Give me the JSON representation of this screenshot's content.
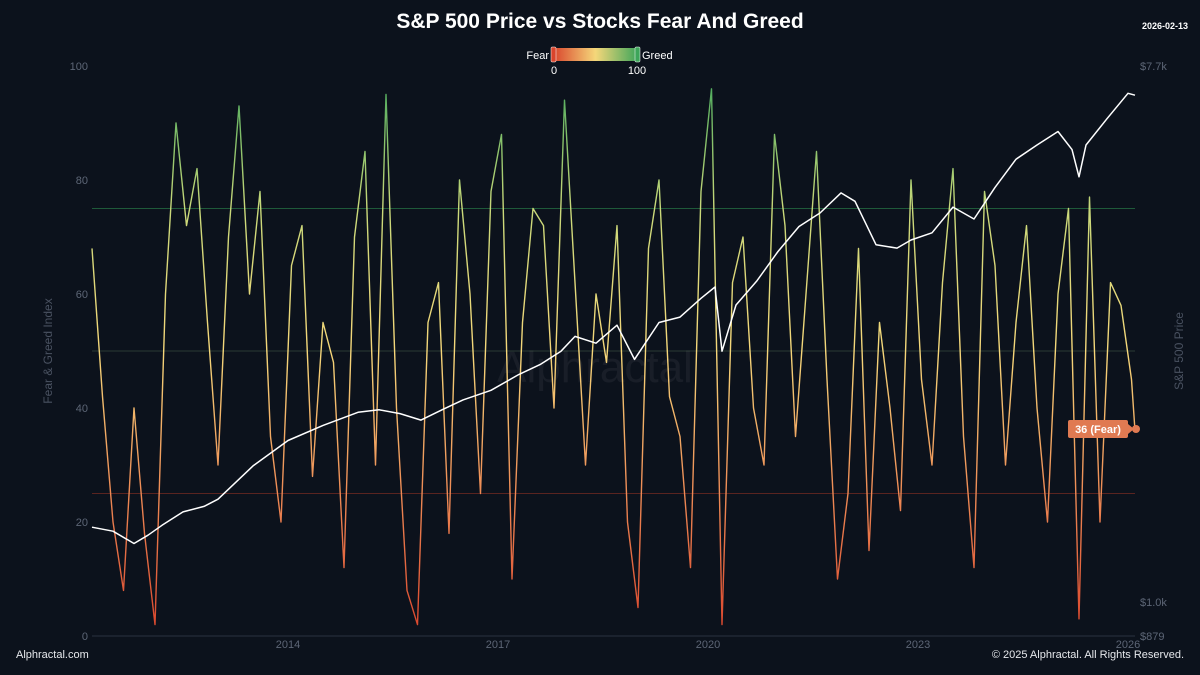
{
  "header": {
    "title": "S&P 500 Price vs Stocks Fear And Greed",
    "date": "2026-02-13"
  },
  "footer": {
    "left": "Alphractal.com",
    "right": "© 2025 Alphractal. All Rights Reserved."
  },
  "watermark": "Alphractal",
  "colors": {
    "background": "#0c121c",
    "fear": "#d9442c",
    "neutral": "#f5d77a",
    "greed": "#3da55a",
    "price_line": "#ffffff",
    "badge": "#e07a52"
  },
  "chart_data": {
    "type": "line",
    "title": "S&P 500 Price vs Stocks Fear And Greed",
    "legend": {
      "left_label": "Fear",
      "right_label": "Greed",
      "min_label": "0",
      "max_label": "100",
      "position": "top-center"
    },
    "x_axis": {
      "range": [
        2011.2,
        2026.1
      ],
      "ticks": [
        2014,
        2017,
        2020,
        2023,
        2026
      ],
      "tick_labels": [
        "2014",
        "2017",
        "2020",
        "2023",
        "2026"
      ]
    },
    "y_left": {
      "label": "Fear & Greed Index",
      "range": [
        0,
        100
      ],
      "ticks": [
        0,
        20,
        40,
        60,
        80,
        100
      ],
      "tick_labels": [
        "0",
        "20",
        "40",
        "60",
        "80",
        "100"
      ]
    },
    "y_right": {
      "label": "S&P 500 Price",
      "scale": "log",
      "range": [
        879,
        7700
      ],
      "ticks": [
        879,
        1000,
        7700
      ],
      "tick_labels": [
        "$879",
        "$1.0k",
        "$7.7k"
      ]
    },
    "reference_lines": [
      {
        "value": 75,
        "color": "#1f5a3a"
      },
      {
        "value": 50,
        "color": "#2a3a33"
      },
      {
        "value": 25,
        "color": "#5a2420"
      }
    ],
    "series": [
      {
        "name": "Fear & Greed Index",
        "axis": "left",
        "style": "gradient",
        "x": [
          2011.2,
          2011.35,
          2011.5,
          2011.65,
          2011.8,
          2011.95,
          2012.1,
          2012.25,
          2012.4,
          2012.55,
          2012.7,
          2012.85,
          2013.0,
          2013.15,
          2013.3,
          2013.45,
          2013.6,
          2013.75,
          2013.9,
          2014.05,
          2014.2,
          2014.35,
          2014.5,
          2014.65,
          2014.8,
          2014.95,
          2015.1,
          2015.25,
          2015.4,
          2015.55,
          2015.7,
          2015.85,
          2016.0,
          2016.15,
          2016.3,
          2016.45,
          2016.6,
          2016.75,
          2016.9,
          2017.05,
          2017.2,
          2017.35,
          2017.5,
          2017.65,
          2017.8,
          2017.95,
          2018.1,
          2018.25,
          2018.4,
          2018.55,
          2018.7,
          2018.85,
          2019.0,
          2019.15,
          2019.3,
          2019.45,
          2019.6,
          2019.75,
          2019.9,
          2020.05,
          2020.2,
          2020.35,
          2020.5,
          2020.65,
          2020.8,
          2020.95,
          2021.1,
          2021.25,
          2021.4,
          2021.55,
          2021.7,
          2021.85,
          2022.0,
          2022.15,
          2022.3,
          2022.45,
          2022.6,
          2022.75,
          2022.9,
          2023.05,
          2023.2,
          2023.35,
          2023.5,
          2023.65,
          2023.8,
          2023.95,
          2024.1,
          2024.25,
          2024.4,
          2024.55,
          2024.7,
          2024.85,
          2025.0,
          2025.15,
          2025.3,
          2025.45,
          2025.6,
          2025.75,
          2025.9,
          2026.05,
          2026.1
        ],
        "values": [
          68,
          42,
          20,
          8,
          40,
          18,
          2,
          60,
          90,
          72,
          82,
          55,
          30,
          70,
          93,
          60,
          78,
          35,
          20,
          65,
          72,
          28,
          55,
          48,
          12,
          70,
          85,
          30,
          95,
          40,
          8,
          2,
          55,
          62,
          18,
          80,
          60,
          25,
          78,
          88,
          10,
          55,
          75,
          72,
          40,
          94,
          62,
          30,
          60,
          48,
          72,
          20,
          5,
          68,
          80,
          42,
          35,
          12,
          78,
          96,
          2,
          62,
          70,
          40,
          30,
          88,
          72,
          35,
          60,
          85,
          45,
          10,
          25,
          68,
          15,
          55,
          40,
          22,
          80,
          45,
          30,
          62,
          82,
          35,
          12,
          78,
          65,
          30,
          55,
          72,
          40,
          20,
          60,
          75,
          3,
          77,
          20,
          62,
          58,
          45,
          36
        ]
      },
      {
        "name": "S&P 500 Price",
        "axis": "right",
        "color": "#ffffff",
        "x": [
          2011.2,
          2011.5,
          2011.8,
          2012.0,
          2012.2,
          2012.5,
          2012.8,
          2013.0,
          2013.5,
          2014.0,
          2014.5,
          2015.0,
          2015.3,
          2015.6,
          2015.9,
          2016.2,
          2016.5,
          2016.9,
          2017.3,
          2017.6,
          2017.9,
          2018.1,
          2018.4,
          2018.7,
          2018.95,
          2019.3,
          2019.6,
          2019.9,
          2020.1,
          2020.2,
          2020.4,
          2020.7,
          2021.0,
          2021.3,
          2021.6,
          2021.9,
          2022.1,
          2022.4,
          2022.7,
          2022.9,
          2023.2,
          2023.5,
          2023.8,
          2024.1,
          2024.4,
          2024.7,
          2025.0,
          2025.2,
          2025.3,
          2025.4,
          2025.7,
          2026.0,
          2026.1
        ],
        "values": [
          1330,
          1310,
          1250,
          1290,
          1340,
          1410,
          1440,
          1480,
          1680,
          1850,
          1960,
          2060,
          2080,
          2050,
          2000,
          2080,
          2160,
          2240,
          2380,
          2470,
          2600,
          2750,
          2680,
          2870,
          2520,
          2900,
          2960,
          3180,
          3320,
          2600,
          3100,
          3400,
          3800,
          4180,
          4400,
          4750,
          4600,
          3900,
          3850,
          3970,
          4080,
          4500,
          4300,
          4850,
          5400,
          5700,
          6000,
          5600,
          5050,
          5700,
          6300,
          6940,
          6890
        ]
      }
    ],
    "current_label": "36 (Fear)",
    "current_value": 36
  }
}
